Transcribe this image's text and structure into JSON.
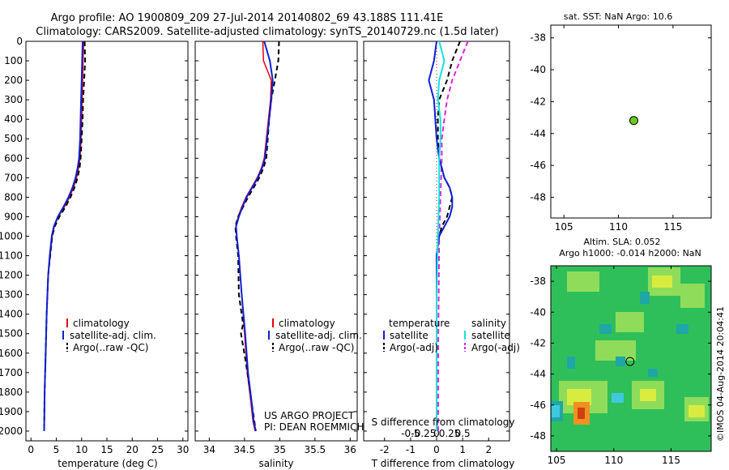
{
  "header": {
    "title_line1": "Argo profile: AO 1900809_209 27-Jul-2014 20140802_69 43.188S 111.41E",
    "title_line2": "Climatology: CARS2009. Satellite-adjusted climatology: synTS_20140729.nc (1.5d later)"
  },
  "colors": {
    "climatology": "#e8000b",
    "satellite": "#1020d0",
    "argo": "#000000",
    "salinity_satellite": "#18e0e0",
    "salinity_argo": "#e020e0",
    "float_marker": "#66cc22"
  },
  "chart_data": [
    {
      "id": "temperature",
      "type": "line",
      "xlabel": "temperature (deg C)",
      "ylabel": "",
      "xlim": [
        -1,
        31
      ],
      "ylim": [
        2050,
        0
      ],
      "xticks": [
        0,
        5,
        10,
        15,
        20,
        25,
        30
      ],
      "yticks": [
        0,
        100,
        200,
        300,
        400,
        500,
        600,
        700,
        800,
        900,
        1000,
        1100,
        1200,
        1300,
        1400,
        1500,
        1600,
        1700,
        1800,
        1900,
        2000
      ],
      "legend": [
        "climatology",
        "satellite-adj. clim.",
        "Argo(..raw -QC)"
      ],
      "series": [
        {
          "name": "climatology",
          "x": [
            10.4,
            10.3,
            10.2,
            10.1,
            10.0,
            9.9,
            9.7,
            9.4,
            9.0,
            8.4,
            7.6,
            6.6,
            5.4,
            4.6,
            4.2,
            3.8,
            3.4,
            3.1,
            2.9,
            2.7,
            2.6
          ],
          "y": [
            0,
            100,
            200,
            300,
            400,
            500,
            600,
            650,
            700,
            750,
            800,
            850,
            900,
            950,
            1000,
            1100,
            1200,
            1400,
            1600,
            1800,
            2000
          ]
        },
        {
          "name": "satellite-adj. clim.",
          "x": [
            10.2,
            10.1,
            10.0,
            9.9,
            9.8,
            9.7,
            9.5,
            9.2,
            8.8,
            8.2,
            7.4,
            6.4,
            5.3,
            4.5,
            4.1,
            3.7,
            3.4,
            3.1,
            2.9,
            2.7,
            2.6
          ],
          "y": [
            0,
            100,
            200,
            300,
            400,
            500,
            600,
            650,
            700,
            750,
            800,
            850,
            900,
            950,
            1000,
            1100,
            1200,
            1400,
            1600,
            1800,
            2000
          ]
        },
        {
          "name": "Argo(..raw -QC)",
          "x": [
            10.6,
            10.7,
            10.5,
            10.3,
            10.2,
            10.0,
            9.8,
            9.6,
            9.2,
            8.6,
            7.8,
            6.8,
            5.6,
            4.7,
            4.2,
            3.8,
            3.4,
            3.1,
            2.9,
            2.7,
            2.6
          ],
          "y": [
            0,
            100,
            200,
            300,
            400,
            500,
            600,
            650,
            700,
            750,
            800,
            850,
            900,
            950,
            1000,
            1100,
            1200,
            1400,
            1600,
            1800,
            2000
          ]
        }
      ]
    },
    {
      "id": "salinity",
      "type": "line",
      "xlabel": "salinity",
      "xlim": [
        33.8,
        36.1
      ],
      "ylim": [
        2050,
        0
      ],
      "xticks": [
        34,
        34.5,
        35,
        35.5,
        36
      ],
      "legend": [
        "climatology",
        "satellite-adj. clim.",
        "Argo(..raw -QC)"
      ],
      "annotation": [
        "US ARGO PROJECT",
        "PI: DEAN ROEMMICH"
      ],
      "series": [
        {
          "name": "climatology",
          "x": [
            34.76,
            34.77,
            34.88,
            34.87,
            34.84,
            34.81,
            34.78,
            34.74,
            34.68,
            34.6,
            34.52,
            34.46,
            34.41,
            34.38,
            34.39,
            34.42,
            34.46,
            34.5,
            34.54,
            34.59,
            34.62,
            34.65
          ],
          "y": [
            0,
            100,
            200,
            300,
            400,
            500,
            600,
            650,
            700,
            750,
            800,
            850,
            900,
            950,
            1000,
            1100,
            1300,
            1500,
            1700,
            1850,
            1950,
            2000
          ]
        },
        {
          "name": "satellite-adj. clim.",
          "x": [
            34.78,
            34.86,
            34.9,
            34.88,
            34.85,
            34.82,
            34.79,
            34.75,
            34.69,
            34.61,
            34.53,
            34.47,
            34.42,
            34.38,
            34.39,
            34.42,
            34.46,
            34.51,
            34.55,
            34.6,
            34.63,
            34.66
          ],
          "y": [
            0,
            100,
            200,
            300,
            400,
            500,
            600,
            650,
            700,
            750,
            800,
            850,
            900,
            950,
            1000,
            1100,
            1300,
            1500,
            1700,
            1850,
            1950,
            2000
          ]
        },
        {
          "name": "Argo(..raw -QC)",
          "x": [
            34.99,
            34.98,
            34.93,
            34.88,
            34.85,
            34.83,
            34.81,
            34.77,
            34.71,
            34.63,
            34.55,
            34.48,
            34.41,
            34.37,
            34.38,
            34.41,
            34.42,
            34.48,
            34.45,
            34.52,
            34.56,
            34.62,
            34.66
          ],
          "y": [
            0,
            100,
            200,
            300,
            400,
            500,
            600,
            650,
            700,
            750,
            800,
            850,
            900,
            950,
            1000,
            1100,
            1300,
            1450,
            1500,
            1650,
            1750,
            1900,
            2000
          ]
        }
      ]
    },
    {
      "id": "difference",
      "type": "line",
      "xlabel": "T difference from climatology",
      "xlabel2": "S difference from climatology",
      "xlim": [
        -2.8,
        2.8
      ],
      "ylim": [
        2050,
        0
      ],
      "xticks": [
        -2,
        -1,
        0,
        1,
        2
      ],
      "x2ticks": [
        "-0.5",
        "-0.25",
        "0",
        "0.25",
        "0.5"
      ],
      "legend_temperature": [
        "temperature",
        "satellite",
        "Argo(-adj)"
      ],
      "legend_salinity": [
        "salinity",
        "satellite",
        "Argo(-adj)"
      ],
      "series": [
        {
          "name": "temperature satellite",
          "x": [
            0.0,
            -0.1,
            -0.3,
            -0.1,
            -0.05,
            0.0,
            0.1,
            0.2,
            0.3,
            0.5,
            0.6,
            0.6,
            0.5,
            0.3,
            0.1,
            0.0,
            0.0,
            0.0,
            0.0
          ],
          "y": [
            0,
            100,
            200,
            300,
            400,
            500,
            600,
            650,
            700,
            750,
            800,
            850,
            900,
            950,
            1000,
            1100,
            1300,
            1600,
            2000
          ]
        },
        {
          "name": "temperature Argo(-adj)",
          "x": [
            0.9,
            0.6,
            0.4,
            0.1,
            0.05,
            0.05,
            0.1,
            0.2,
            0.3,
            0.5,
            0.6,
            0.5,
            0.4,
            0.2,
            0.1,
            0.0,
            0.0
          ],
          "y": [
            0,
            100,
            200,
            300,
            400,
            500,
            600,
            650,
            700,
            750,
            800,
            850,
            900,
            950,
            1000,
            1100,
            2000
          ]
        },
        {
          "name": "salinity satellite",
          "x": [
            0.1,
            0.3,
            0.1,
            0.05,
            0.15,
            0.15,
            0.1,
            0.1,
            0.05,
            0.0,
            0.0,
            0.0
          ],
          "y": [
            0,
            100,
            200,
            300,
            400,
            500,
            600,
            800,
            1000,
            1300,
            1600,
            2000
          ]
        },
        {
          "name": "salinity Argo(-adj)",
          "x": [
            1.2,
            0.9,
            0.6,
            0.4,
            0.3,
            0.2,
            0.2,
            0.15,
            0.1,
            0.08,
            0.06,
            0.06
          ],
          "y": [
            0,
            100,
            200,
            300,
            400,
            500,
            600,
            800,
            1000,
            1300,
            1600,
            2000
          ]
        }
      ]
    },
    {
      "id": "location",
      "type": "scatter",
      "title": "sat. SST: NaN Argo: 10.6",
      "xlim": [
        103.8,
        118.5
      ],
      "ylim": [
        -49.3,
        -37.2
      ],
      "xticks": [
        105,
        110,
        115
      ],
      "yticks": [
        -38,
        -40,
        -42,
        -44,
        -46,
        -48
      ],
      "points": [
        {
          "x": 111.41,
          "y": -43.188
        }
      ]
    },
    {
      "id": "sla",
      "type": "heatmap",
      "title_line1": "Altim. SLA: 0.052",
      "title_line2": "Argo h1000: -0.014 h2000: NaN",
      "xlim": [
        104.5,
        118.5
      ],
      "ylim": [
        -49.0,
        -37.0
      ],
      "xticks": [
        105,
        110,
        115
      ],
      "yticks": [
        -38,
        -40,
        -42,
        -44,
        -46,
        -48
      ],
      "points": [
        {
          "x": 111.41,
          "y": -43.188
        }
      ]
    }
  ],
  "side_stamp": "©IMOS 04-Aug-2014 20:04:41"
}
